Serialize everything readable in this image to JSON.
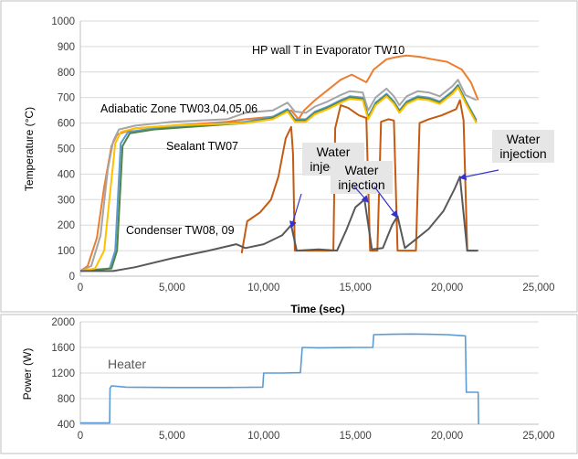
{
  "chart_data": [
    {
      "type": "line",
      "xlabel": "Time (sec)",
      "ylabel": "Temperature (°C)",
      "xlim": [
        0,
        25000
      ],
      "ylim": [
        0,
        1000
      ],
      "x_ticks": [
        0,
        5000,
        10000,
        15000,
        20000,
        25000
      ],
      "x_tick_labels": [
        "0",
        "5,000",
        "10,000",
        "15,000",
        "20,000",
        "25,000"
      ],
      "y_ticks": [
        0,
        100,
        200,
        300,
        400,
        500,
        600,
        700,
        800,
        900,
        1000
      ],
      "y_tick_labels": [
        "0",
        "100",
        "200",
        "300",
        "400",
        "500",
        "600",
        "700",
        "800",
        "900",
        "1000"
      ],
      "grid": "horizontal",
      "series": [
        {
          "name": "HP wall T in Evaporator TW10",
          "color": "#ed7d31",
          "points": [
            [
              0,
              20
            ],
            [
              400,
              40
            ],
            [
              900,
              150
            ],
            [
              1300,
              350
            ],
            [
              1700,
              510
            ],
            [
              2000,
              555
            ],
            [
              3000,
              580
            ],
            [
              5000,
              590
            ],
            [
              8000,
              605
            ],
            [
              9000,
              615
            ],
            [
              10500,
              625
            ],
            [
              11500,
              650
            ],
            [
              11900,
              615
            ],
            [
              12200,
              650
            ],
            [
              12800,
              690
            ],
            [
              13500,
              730
            ],
            [
              14200,
              770
            ],
            [
              14800,
              790
            ],
            [
              15600,
              760
            ],
            [
              16000,
              810
            ],
            [
              16700,
              850
            ],
            [
              17300,
              860
            ],
            [
              17800,
              865
            ],
            [
              18500,
              860
            ],
            [
              19200,
              850
            ],
            [
              20000,
              840
            ],
            [
              20800,
              810
            ],
            [
              21300,
              760
            ],
            [
              21700,
              690
            ]
          ]
        },
        {
          "name": "Adiabatic Zone TW03,04,05,06",
          "color": "#a5a5a5",
          "points": [
            [
              0,
              20
            ],
            [
              600,
              40
            ],
            [
              1100,
              160
            ],
            [
              1500,
              420
            ],
            [
              1800,
              530
            ],
            [
              2100,
              575
            ],
            [
              3000,
              590
            ],
            [
              5000,
              605
            ],
            [
              8000,
              615
            ],
            [
              9000,
              640
            ],
            [
              10500,
              650
            ],
            [
              11300,
              680
            ],
            [
              11700,
              645
            ],
            [
              12300,
              640
            ],
            [
              12800,
              665
            ],
            [
              13500,
              685
            ],
            [
              14200,
              710
            ],
            [
              14700,
              725
            ],
            [
              15400,
              720
            ],
            [
              15700,
              650
            ],
            [
              16100,
              700
            ],
            [
              16700,
              735
            ],
            [
              17100,
              705
            ],
            [
              17400,
              670
            ],
            [
              17800,
              705
            ],
            [
              18400,
              725
            ],
            [
              19000,
              720
            ],
            [
              19600,
              705
            ],
            [
              20300,
              745
            ],
            [
              20600,
              770
            ],
            [
              21000,
              710
            ],
            [
              21600,
              690
            ]
          ]
        },
        {
          "name": "Adiabatic Zone TW03,04,05,06",
          "color": "#5b9bd5",
          "points": [
            [
              0,
              20
            ],
            [
              1600,
              30
            ],
            [
              1900,
              100
            ],
            [
              2200,
              520
            ],
            [
              2600,
              565
            ],
            [
              4000,
              580
            ],
            [
              6000,
              590
            ],
            [
              9000,
              605
            ],
            [
              10500,
              625
            ],
            [
              11300,
              655
            ],
            [
              11700,
              615
            ],
            [
              12300,
              615
            ],
            [
              12800,
              645
            ],
            [
              13500,
              665
            ],
            [
              14200,
              690
            ],
            [
              14700,
              705
            ],
            [
              15400,
              700
            ],
            [
              15700,
              625
            ],
            [
              16100,
              680
            ],
            [
              16700,
              715
            ],
            [
              17100,
              685
            ],
            [
              17400,
              650
            ],
            [
              17800,
              685
            ],
            [
              18400,
              705
            ],
            [
              19000,
              700
            ],
            [
              19600,
              685
            ],
            [
              20300,
              725
            ],
            [
              20600,
              750
            ],
            [
              21000,
              690
            ],
            [
              21600,
              612
            ]
          ]
        },
        {
          "name": "Adiabatic Zone TW03,04,05,06",
          "color": "#4e8542",
          "points": [
            [
              0,
              20
            ],
            [
              1700,
              30
            ],
            [
              2000,
              100
            ],
            [
              2300,
              510
            ],
            [
              2700,
              560
            ],
            [
              4000,
              575
            ],
            [
              6000,
              585
            ],
            [
              9000,
              600
            ],
            [
              10500,
              620
            ],
            [
              11300,
              650
            ],
            [
              11700,
              610
            ],
            [
              12300,
              610
            ],
            [
              12800,
              640
            ],
            [
              13500,
              660
            ],
            [
              14200,
              685
            ],
            [
              14700,
              700
            ],
            [
              15400,
              695
            ],
            [
              15700,
              620
            ],
            [
              16100,
              675
            ],
            [
              16700,
              710
            ],
            [
              17100,
              680
            ],
            [
              17400,
              645
            ],
            [
              17800,
              680
            ],
            [
              18400,
              700
            ],
            [
              19000,
              695
            ],
            [
              19600,
              680
            ],
            [
              20300,
              720
            ],
            [
              20600,
              745
            ],
            [
              21000,
              685
            ],
            [
              21600,
              605
            ]
          ]
        },
        {
          "name": "Sealant TW07",
          "color": "#ffc000",
          "points": [
            [
              0,
              20
            ],
            [
              800,
              30
            ],
            [
              1300,
              100
            ],
            [
              1600,
              310
            ],
            [
              1900,
              520
            ],
            [
              2200,
              565
            ],
            [
              3000,
              580
            ],
            [
              5000,
              590
            ],
            [
              9000,
              600
            ],
            [
              10500,
              615
            ],
            [
              11300,
              645
            ],
            [
              11700,
              605
            ],
            [
              12300,
              605
            ],
            [
              12800,
              635
            ],
            [
              13500,
              655
            ],
            [
              14200,
              680
            ],
            [
              14700,
              695
            ],
            [
              15400,
              690
            ],
            [
              15700,
              615
            ],
            [
              16100,
              670
            ],
            [
              16700,
              705
            ],
            [
              17100,
              675
            ],
            [
              17400,
              640
            ],
            [
              17800,
              675
            ],
            [
              18400,
              695
            ],
            [
              19000,
              690
            ],
            [
              19600,
              675
            ],
            [
              20300,
              715
            ],
            [
              20600,
              740
            ],
            [
              21000,
              680
            ],
            [
              21600,
              600
            ]
          ]
        },
        {
          "name": "Condenser TW08, 09",
          "color": "#c55a11",
          "points": [
            [
              8800,
              90
            ],
            [
              9100,
              215
            ],
            [
              9800,
              250
            ],
            [
              10400,
              300
            ],
            [
              10800,
              390
            ],
            [
              11200,
              540
            ],
            [
              11500,
              585
            ],
            [
              11600,
              480
            ],
            [
              11700,
              100
            ],
            [
              13800,
              100
            ],
            [
              13900,
              580
            ],
            [
              14200,
              670
            ],
            [
              14600,
              660
            ],
            [
              15200,
              630
            ],
            [
              15600,
              620
            ],
            [
              15800,
              100
            ],
            [
              16200,
              100
            ],
            [
              16400,
              605
            ],
            [
              16800,
              615
            ],
            [
              17100,
              610
            ],
            [
              17300,
              100
            ],
            [
              18300,
              100
            ],
            [
              18500,
              600
            ],
            [
              19000,
              615
            ],
            [
              19700,
              630
            ],
            [
              20500,
              655
            ],
            [
              20700,
              690
            ],
            [
              20900,
              610
            ],
            [
              21100,
              100
            ],
            [
              21600,
              100
            ]
          ]
        },
        {
          "name": "Condenser TW08, 09",
          "color": "#595959",
          "points": [
            [
              0,
              20
            ],
            [
              1800,
              20
            ],
            [
              3000,
              35
            ],
            [
              5000,
              70
            ],
            [
              7000,
              100
            ],
            [
              8500,
              125
            ],
            [
              9000,
              110
            ],
            [
              10000,
              125
            ],
            [
              11000,
              160
            ],
            [
              11500,
              200
            ],
            [
              11800,
              100
            ],
            [
              13000,
              105
            ],
            [
              14000,
              100
            ],
            [
              14500,
              180
            ],
            [
              15000,
              270
            ],
            [
              15500,
              300
            ],
            [
              15900,
              105
            ],
            [
              16500,
              110
            ],
            [
              17000,
              200
            ],
            [
              17300,
              235
            ],
            [
              17700,
              110
            ],
            [
              19000,
              185
            ],
            [
              19800,
              255
            ],
            [
              20400,
              340
            ],
            [
              20700,
              390
            ],
            [
              21100,
              100
            ],
            [
              21700,
              100
            ]
          ]
        }
      ],
      "annotations": [
        {
          "text": "HP wall T in Evaporator TW10"
        },
        {
          "text": "Adiabatic Zone TW03,04,05,06"
        },
        {
          "text": "Sealant TW07"
        },
        {
          "text": "Condenser TW08, 09"
        },
        {
          "text": "Water",
          "text2": "injection",
          "arrows_to": [
            [
              11500,
              190
            ]
          ]
        },
        {
          "text": "Water",
          "text2": "injection",
          "arrows_to": [
            [
              15700,
              290
            ],
            [
              17300,
              230
            ]
          ]
        },
        {
          "text": "Water",
          "text2": "injection",
          "arrows_to": [
            [
              20700,
              385
            ]
          ]
        }
      ]
    },
    {
      "type": "line",
      "xlabel": "",
      "ylabel": "Power (W)",
      "xlim": [
        0,
        25000
      ],
      "ylim": [
        400,
        2000
      ],
      "x_ticks": [
        0,
        5000,
        10000,
        15000,
        20000,
        25000
      ],
      "x_tick_labels": [
        "0",
        "5,000",
        "10,000",
        "15,000",
        "20,000",
        "25,000"
      ],
      "y_ticks": [
        400,
        800,
        1200,
        1600,
        2000
      ],
      "y_tick_labels": [
        "400",
        "800",
        "1200",
        "1600",
        "2000"
      ],
      "grid": "horizontal",
      "annotation": "Heater",
      "series": [
        {
          "name": "Heater",
          "color": "#5b9bd5",
          "points": [
            [
              0,
              420
            ],
            [
              1600,
              420
            ],
            [
              1620,
              960
            ],
            [
              1700,
              1000
            ],
            [
              2500,
              980
            ],
            [
              5000,
              975
            ],
            [
              8000,
              975
            ],
            [
              9950,
              980
            ],
            [
              10000,
              1200
            ],
            [
              11000,
              1200
            ],
            [
              12000,
              1205
            ],
            [
              12100,
              1600
            ],
            [
              13000,
              1595
            ],
            [
              15000,
              1600
            ],
            [
              15950,
              1600
            ],
            [
              16000,
              1800
            ],
            [
              17000,
              1805
            ],
            [
              18000,
              1810
            ],
            [
              19000,
              1805
            ],
            [
              20000,
              1800
            ],
            [
              20500,
              1790
            ],
            [
              21000,
              1780
            ],
            [
              21050,
              900
            ],
            [
              21700,
              900
            ],
            [
              21720,
              400
            ]
          ]
        }
      ]
    }
  ]
}
